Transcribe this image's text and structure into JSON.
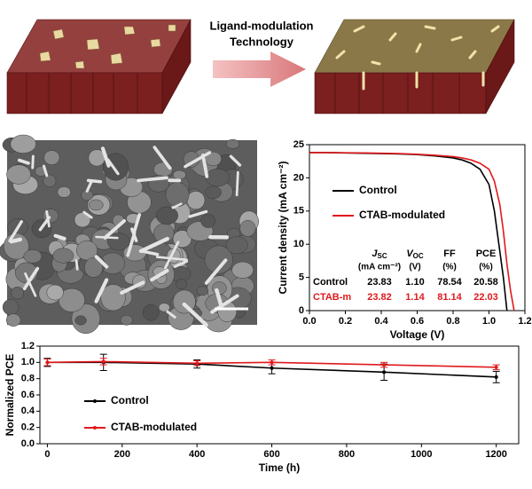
{
  "schematic": {
    "label_lines": [
      "Ligand-modulation",
      "Technology"
    ]
  },
  "chart_data": [
    {
      "type": "line",
      "ylabel": "Current density (mA cm⁻²)",
      "xlabel": "Voltage (V)",
      "x": [
        0,
        0.1,
        0.2,
        0.3,
        0.4,
        0.5,
        0.6,
        0.7,
        0.8,
        0.85,
        0.9,
        0.95,
        1.0,
        1.03,
        1.06,
        1.08,
        1.1,
        1.12,
        1.14
      ],
      "series": [
        {
          "name": "Control",
          "color": "#000000",
          "values": [
            23.8,
            23.8,
            23.75,
            23.7,
            23.65,
            23.6,
            23.5,
            23.3,
            23.0,
            22.7,
            22.2,
            21.3,
            19,
            15,
            9,
            5,
            0,
            null,
            null
          ]
        },
        {
          "name": "CTAB-modulated",
          "color": "#e0191c",
          "values": [
            23.8,
            23.8,
            23.78,
            23.75,
            23.7,
            23.65,
            23.55,
            23.4,
            23.2,
            23.0,
            22.7,
            22.2,
            21.3,
            19.5,
            16,
            12,
            7,
            3,
            0
          ]
        }
      ],
      "xlim": [
        0,
        1.2
      ],
      "xticks": [
        {
          "value": 0,
          "label": "0.0"
        },
        0.2,
        0.4,
        0.6,
        0.8,
        {
          "value": 1,
          "label": "1.0"
        },
        1.2
      ],
      "ylim": [
        0,
        25
      ],
      "yticks": [
        0,
        5,
        10,
        15,
        20,
        25
      ],
      "table": {
        "columns": [
          {
            "symbol": "J",
            "sub": "SC",
            "unit": "(mA cm⁻²)"
          },
          {
            "symbol": "V",
            "sub": "OC",
            "unit": "(V)"
          },
          {
            "symbol": "FF",
            "unit": "(%)"
          },
          {
            "symbol": "PCE",
            "unit": "(%)"
          }
        ],
        "rows": [
          {
            "label": "Control",
            "cells": [
              "23.83",
              "1.10",
              "78.54",
              "20.58"
            ]
          },
          {
            "label": "CTAB-m",
            "cells": [
              "23.82",
              "1.14",
              "81.14",
              "22.03"
            ]
          }
        ]
      }
    },
    {
      "type": "line",
      "ylabel": "Normalized PCE",
      "xlabel": "Time (h)",
      "x": [
        0,
        150,
        400,
        600,
        900,
        1200
      ],
      "series": [
        {
          "name": "Control",
          "color": "#000000",
          "values": [
            1.0,
            1.0,
            0.98,
            0.93,
            0.88,
            0.82
          ],
          "errors": [
            0.05,
            0.1,
            0.05,
            0.07,
            0.1,
            0.07
          ]
        },
        {
          "name": "CTAB-modulated",
          "color": "#e0191c",
          "values": [
            1.0,
            1.01,
            0.99,
            1.0,
            0.97,
            0.94
          ],
          "errors": [
            0.04,
            0.04,
            0.03,
            0.03,
            0.03,
            0.03
          ]
        }
      ],
      "xlim": [
        -20,
        1260
      ],
      "xticks": [
        0,
        200,
        400,
        600,
        800,
        1000,
        1200
      ],
      "ylim": [
        0,
        1.2
      ],
      "yticks": [
        {
          "value": 0,
          "label": "0.0"
        },
        0.2,
        0.4,
        0.6,
        0.8,
        {
          "value": 1,
          "label": "1.0"
        },
        1.2
      ]
    }
  ]
}
